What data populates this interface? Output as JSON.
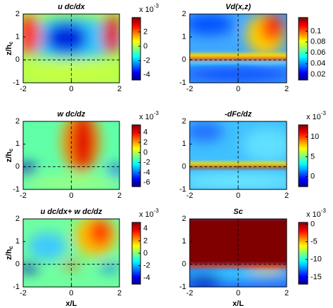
{
  "chart_data": [
    {
      "type": "heatmap",
      "title": "u dc/dx",
      "ylabel": "z/h",
      "ylabel_sub": "c",
      "xlim": [
        -2,
        2
      ],
      "ylim": [
        -1,
        2
      ],
      "xticks": [
        -2,
        0,
        2
      ],
      "yticks": [
        -1,
        0,
        1,
        2
      ],
      "clim": [
        -4.7,
        4
      ],
      "cticks": [
        -4,
        -2,
        0,
        2
      ],
      "colorbar_scale": "x 10",
      "colorbar_exponent": "-3"
    },
    {
      "type": "heatmap",
      "title": "Vd(x,z)",
      "xlim": [
        -2,
        2
      ],
      "ylim": [
        -1,
        2
      ],
      "xticks": [
        -2,
        0,
        2
      ],
      "yticks": [
        -1,
        0,
        1,
        2
      ],
      "clim": [
        0.01,
        0.125
      ],
      "cticks": [
        0.02,
        0.04,
        0.06,
        0.08,
        0.1
      ]
    },
    {
      "type": "heatmap",
      "title": "w dc/dz",
      "ylabel": "z/h",
      "ylabel_sub": "c",
      "xlim": [
        -2,
        2
      ],
      "ylim": [
        -1,
        2
      ],
      "xticks": [
        -2,
        0,
        2
      ],
      "yticks": [
        -1,
        0,
        1,
        2
      ],
      "clim": [
        -6.8,
        5.5
      ],
      "cticks": [
        -6,
        -4,
        -2,
        0,
        2,
        4
      ],
      "colorbar_scale": "x 10",
      "colorbar_exponent": "-3"
    },
    {
      "type": "heatmap",
      "title": "-dFc/dz",
      "xlim": [
        -2,
        2
      ],
      "ylim": [
        -1,
        2
      ],
      "xticks": [
        -2,
        0,
        2
      ],
      "yticks": [
        -1,
        0,
        1,
        2
      ],
      "clim": [
        -2.5,
        13
      ],
      "cticks": [
        0,
        5,
        10
      ],
      "colorbar_scale": "x 10",
      "colorbar_exponent": "-3"
    },
    {
      "type": "heatmap",
      "title": "u dc/dx+ w dc/dz",
      "ylabel": "z/h",
      "ylabel_sub": "c",
      "xlabel": "x/L",
      "xlim": [
        -2,
        2
      ],
      "ylim": [
        -1,
        2
      ],
      "xticks": [
        -2,
        0,
        2
      ],
      "yticks": [
        -1,
        0,
        1,
        2
      ],
      "clim": [
        -5,
        5
      ],
      "cticks": [
        -4,
        -2,
        0,
        2,
        4
      ],
      "colorbar_scale": "x 10",
      "colorbar_exponent": "-3"
    },
    {
      "type": "heatmap",
      "title": "Sc",
      "xlabel": "x/L",
      "xlim": [
        -2,
        2
      ],
      "ylim": [
        -1,
        2
      ],
      "xticks": [
        -2,
        0,
        2
      ],
      "yticks": [
        -1,
        0,
        1,
        2
      ],
      "clim": [
        -17,
        0.5
      ],
      "cticks": [
        -15,
        -10,
        -5,
        0
      ],
      "colorbar_scale": "x 10",
      "colorbar_exponent": "-3"
    }
  ]
}
